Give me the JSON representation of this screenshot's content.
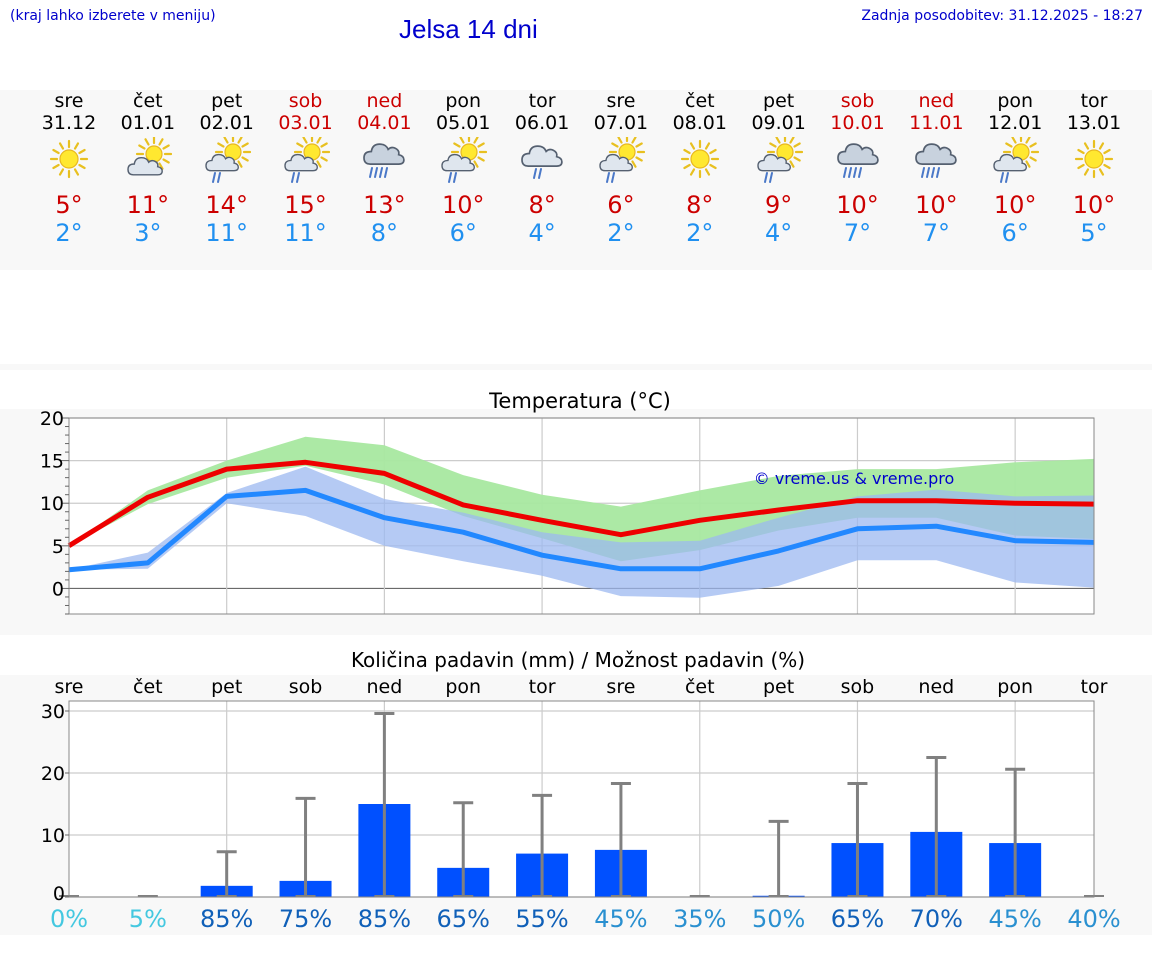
{
  "header": {
    "menu_hint": "(kraj lahko izberete v meniju)",
    "title": "Jelsa 14 dni",
    "updated": "Zadnja posodobitev: 31.12.2025 - 18:27"
  },
  "days": [
    {
      "name": "sre",
      "date": "31.12",
      "weekend": false,
      "icon": "sun",
      "tmax": "5°",
      "tmin": "2°",
      "precip_pct": "0%",
      "pct_color": "#44c8e0"
    },
    {
      "name": "čet",
      "date": "01.01",
      "weekend": false,
      "icon": "sun-cloud",
      "tmax": "11°",
      "tmin": "3°",
      "precip_pct": "5%",
      "pct_color": "#44c8e0"
    },
    {
      "name": "pet",
      "date": "02.01",
      "weekend": false,
      "icon": "sun-cloud-rain",
      "tmax": "14°",
      "tmin": "11°",
      "precip_pct": "85%",
      "pct_color": "#1060b8"
    },
    {
      "name": "sob",
      "date": "03.01",
      "weekend": true,
      "icon": "sun-cloud-rain",
      "tmax": "15°",
      "tmin": "11°",
      "precip_pct": "75%",
      "pct_color": "#1060b8"
    },
    {
      "name": "ned",
      "date": "04.01",
      "weekend": true,
      "icon": "cloud-rain-heavy",
      "tmax": "13°",
      "tmin": "8°",
      "precip_pct": "85%",
      "pct_color": "#1060b8"
    },
    {
      "name": "pon",
      "date": "05.01",
      "weekend": false,
      "icon": "sun-cloud-rain",
      "tmax": "10°",
      "tmin": "6°",
      "precip_pct": "65%",
      "pct_color": "#1060b8"
    },
    {
      "name": "tor",
      "date": "06.01",
      "weekend": false,
      "icon": "cloud-rain",
      "tmax": "8°",
      "tmin": "4°",
      "precip_pct": "55%",
      "pct_color": "#1060b8"
    },
    {
      "name": "sre",
      "date": "07.01",
      "weekend": false,
      "icon": "sun-cloud-rain",
      "tmax": "6°",
      "tmin": "2°",
      "precip_pct": "45%",
      "pct_color": "#2a90d0"
    },
    {
      "name": "čet",
      "date": "08.01",
      "weekend": false,
      "icon": "sun",
      "tmax": "8°",
      "tmin": "2°",
      "precip_pct": "35%",
      "pct_color": "#2a90d0"
    },
    {
      "name": "pet",
      "date": "09.01",
      "weekend": false,
      "icon": "sun-cloud-rain",
      "tmax": "9°",
      "tmin": "4°",
      "precip_pct": "50%",
      "pct_color": "#2a90d0"
    },
    {
      "name": "sob",
      "date": "10.01",
      "weekend": true,
      "icon": "cloud-rain-heavy",
      "tmax": "10°",
      "tmin": "7°",
      "precip_pct": "65%",
      "pct_color": "#1060b8"
    },
    {
      "name": "ned",
      "date": "11.01",
      "weekend": true,
      "icon": "cloud-rain-heavy",
      "tmax": "10°",
      "tmin": "7°",
      "precip_pct": "70%",
      "pct_color": "#1060b8"
    },
    {
      "name": "pon",
      "date": "12.01",
      "weekend": false,
      "icon": "sun-cloud-rain",
      "tmax": "10°",
      "tmin": "6°",
      "precip_pct": "45%",
      "pct_color": "#2a90d0"
    },
    {
      "name": "tor",
      "date": "13.01",
      "weekend": false,
      "icon": "sun",
      "tmax": "10°",
      "tmin": "5°",
      "precip_pct": "40%",
      "pct_color": "#2a90d0"
    }
  ],
  "colors": {
    "red": "#ee0000",
    "blue": "#2288ff",
    "green_band": "#a8e8a0",
    "blue_band": "#9cb8f0",
    "overlap_band": "#78c4a4",
    "bar": "#0050ff",
    "whisker": "#808080",
    "title_blue": "#0000cc"
  },
  "chart_data": [
    {
      "type": "line",
      "title": "Temperatura (°C)",
      "watermark": "© vreme.us & vreme.pro",
      "ylim": [
        -3,
        20
      ],
      "yticks": [
        0,
        5,
        10,
        15,
        20
      ],
      "x": [
        0,
        1,
        2,
        3,
        4,
        5,
        6,
        7,
        8,
        9,
        10,
        11,
        12,
        13
      ],
      "series": [
        {
          "name": "Tmax",
          "color": "#ee0000",
          "values": [
            5,
            10.7,
            14,
            14.8,
            13.5,
            9.8,
            8,
            6.3,
            8,
            9.2,
            10.3,
            10.3,
            10,
            9.9
          ]
        },
        {
          "name": "Tmin",
          "color": "#2288ff",
          "values": [
            2.2,
            3,
            10.8,
            11.5,
            8.3,
            6.6,
            3.9,
            2.3,
            2.3,
            4.4,
            7,
            7.3,
            5.6,
            5.4
          ]
        }
      ],
      "bands": [
        {
          "name": "Tmax range",
          "color": "#a8e8a0",
          "low": [
            5,
            9.9,
            13,
            14.4,
            12.2,
            8.5,
            5.9,
            3.2,
            4.5,
            6.8,
            8.3,
            8.3,
            6.2,
            5.8
          ],
          "high": [
            5,
            11.5,
            15,
            17.8,
            16.8,
            13.3,
            11,
            9.6,
            11.5,
            13.2,
            14,
            14,
            14.8,
            15.2
          ]
        },
        {
          "name": "Tmin range",
          "color": "#9cb8f0",
          "low": [
            2.2,
            2.3,
            10,
            8.5,
            5,
            3.2,
            1.5,
            -0.9,
            -1.1,
            0.3,
            3.3,
            3.3,
            0.7,
            0.1
          ],
          "high": [
            2.2,
            4.2,
            11.2,
            14.3,
            10.5,
            8.9,
            6.6,
            5.4,
            5.6,
            8.3,
            10.8,
            11.6,
            10.8,
            10.9
          ]
        }
      ]
    },
    {
      "type": "bar",
      "title": "Količina padavin (mm) / Možnost padavin (%)",
      "ylim": [
        0,
        30
      ],
      "yticks": [
        0,
        10,
        20,
        30
      ],
      "categories": [
        "sre",
        "čet",
        "pet",
        "sob",
        "ned",
        "pon",
        "tor",
        "sre",
        "čet",
        "pet",
        "sob",
        "ned",
        "pon",
        "tor"
      ],
      "values": [
        0,
        0,
        1.8,
        2.6,
        15,
        4.7,
        7,
        7.6,
        0,
        0.2,
        8.7,
        10.5,
        8.7,
        0
      ],
      "error_high": [
        0,
        0,
        7.3,
        15.9,
        29.6,
        15.2,
        16.4,
        18.3,
        0,
        12.2,
        18.3,
        22.5,
        20.6,
        0
      ],
      "chance": [
        "0%",
        "5%",
        "85%",
        "75%",
        "85%",
        "65%",
        "55%",
        "45%",
        "35%",
        "50%",
        "65%",
        "70%",
        "45%",
        "40%"
      ]
    }
  ]
}
